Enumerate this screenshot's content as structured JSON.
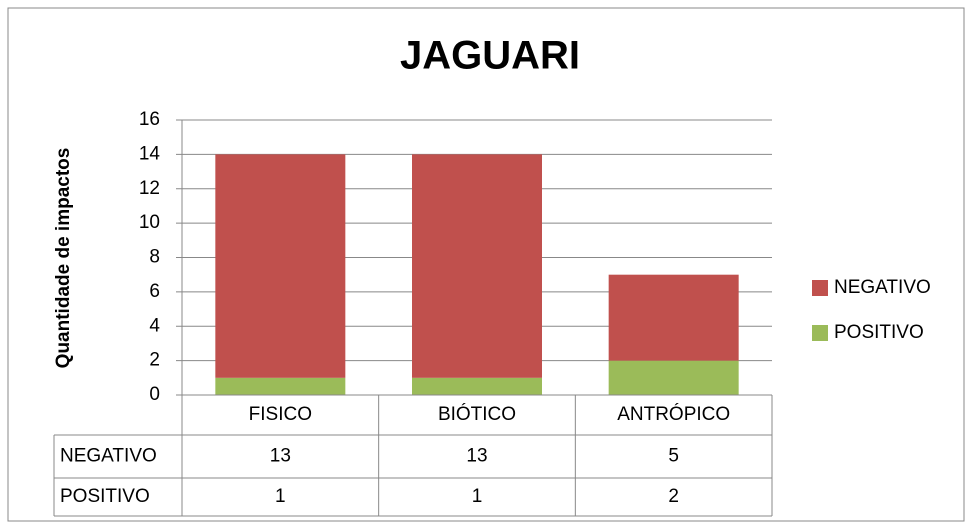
{
  "chart_data": {
    "type": "bar",
    "stacked": true,
    "title": "JAGUARI",
    "y_label": "Quantidade de impactos",
    "categories": [
      "FISICO",
      "BIÓTICO",
      "ANTRÓPICO"
    ],
    "series": [
      {
        "name": "NEGATIVO",
        "color": "#c0504d",
        "values": [
          13,
          13,
          5
        ]
      },
      {
        "name": "POSITIVO",
        "color": "#9bbb59",
        "values": [
          1,
          1,
          2
        ]
      }
    ],
    "ylim": [
      0,
      16
    ],
    "yticks": [
      0,
      2,
      4,
      6,
      8,
      10,
      12,
      14,
      16
    ],
    "grid": true,
    "legend": "right",
    "data_table": true
  }
}
